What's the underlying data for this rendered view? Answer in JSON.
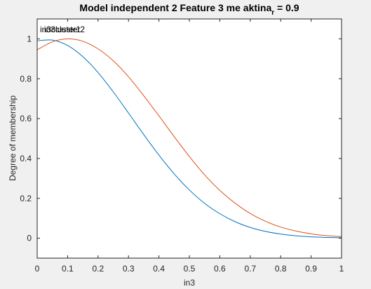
{
  "chart_data": {
    "type": "line",
    "title": {
      "main": "Model independent 2 Feature 3 me aktina",
      "subscript": "r",
      "suffix": " = 0.9"
    },
    "xlabel": "in3",
    "ylabel": "Degree of membership",
    "xlim": [
      0,
      1
    ],
    "ylim": [
      -0.1,
      1.1
    ],
    "xticks": [
      0,
      0.1,
      0.2,
      0.3,
      0.4,
      0.5,
      0.6,
      0.7,
      0.8,
      0.9,
      1
    ],
    "xtick_labels": [
      "0",
      "0.1",
      "0.2",
      "0.3",
      "0.4",
      "0.5",
      "0.6",
      "0.7",
      "0.8",
      "0.9",
      "1"
    ],
    "yticks": [
      0,
      0.2,
      0.4,
      0.6,
      0.8,
      1
    ],
    "ytick_labels": [
      "0",
      "0.2",
      "0.4",
      "0.6",
      "0.8",
      "1"
    ],
    "grid": false,
    "series": [
      {
        "name": "in3cluster1",
        "color": "#0072bd",
        "x": [
          0,
          0.05,
          0.1,
          0.15,
          0.2,
          0.25,
          0.3,
          0.35,
          0.4,
          0.45,
          0.5,
          0.55,
          0.6,
          0.65,
          0.7,
          0.75,
          0.8,
          0.85,
          0.9,
          0.95,
          1
        ],
        "y": [
          0.99,
          0.994,
          0.967,
          0.911,
          0.831,
          0.734,
          0.628,
          0.52,
          0.417,
          0.323,
          0.242,
          0.175,
          0.123,
          0.083,
          0.054,
          0.034,
          0.021,
          0.012,
          0.007,
          0.004,
          0.002
        ]
      },
      {
        "name": "in3cluster2",
        "color": "#d95319",
        "x": [
          0,
          0.05,
          0.1,
          0.15,
          0.2,
          0.25,
          0.3,
          0.35,
          0.4,
          0.45,
          0.5,
          0.55,
          0.6,
          0.65,
          0.7,
          0.75,
          0.8,
          0.85,
          0.9,
          0.95,
          1
        ],
        "y": [
          0.945,
          0.985,
          1.0,
          0.988,
          0.95,
          0.89,
          0.81,
          0.715,
          0.614,
          0.51,
          0.41,
          0.318,
          0.24,
          0.176,
          0.124,
          0.085,
          0.056,
          0.036,
          0.022,
          0.013,
          0.008
        ]
      }
    ],
    "curve_labels": [
      "in3cluster1",
      "in3cluster2"
    ]
  }
}
